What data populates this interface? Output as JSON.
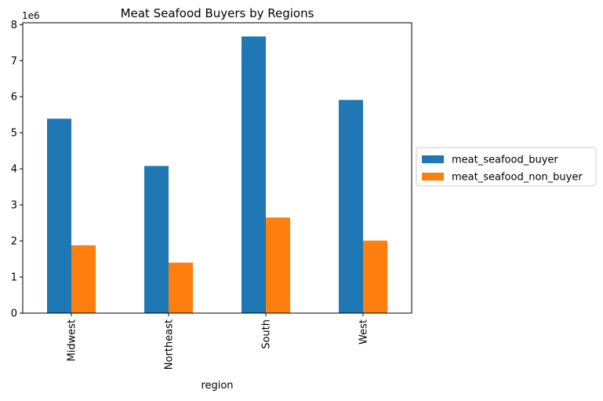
{
  "chart_data": {
    "type": "bar",
    "title": "Meat Seafood Buyers by Regions",
    "xlabel": "region",
    "ylabel": "",
    "y_scale_label": "1e6",
    "y_scale": 1000000,
    "categories": [
      "Midwest",
      "Northeast",
      "South",
      "West"
    ],
    "series": [
      {
        "name": "meat_seafood_buyer",
        "color": "#1f77b4",
        "values": [
          5390000,
          4080000,
          7670000,
          5910000
        ]
      },
      {
        "name": "meat_seafood_non_buyer",
        "color": "#ff7f0e",
        "values": [
          1880000,
          1400000,
          2650000,
          2010000
        ]
      }
    ],
    "ylim": [
      0,
      8050000
    ],
    "yticks": [
      0,
      1,
      2,
      3,
      4,
      5,
      6,
      7,
      8
    ],
    "legend_position": "right",
    "grid": false
  }
}
